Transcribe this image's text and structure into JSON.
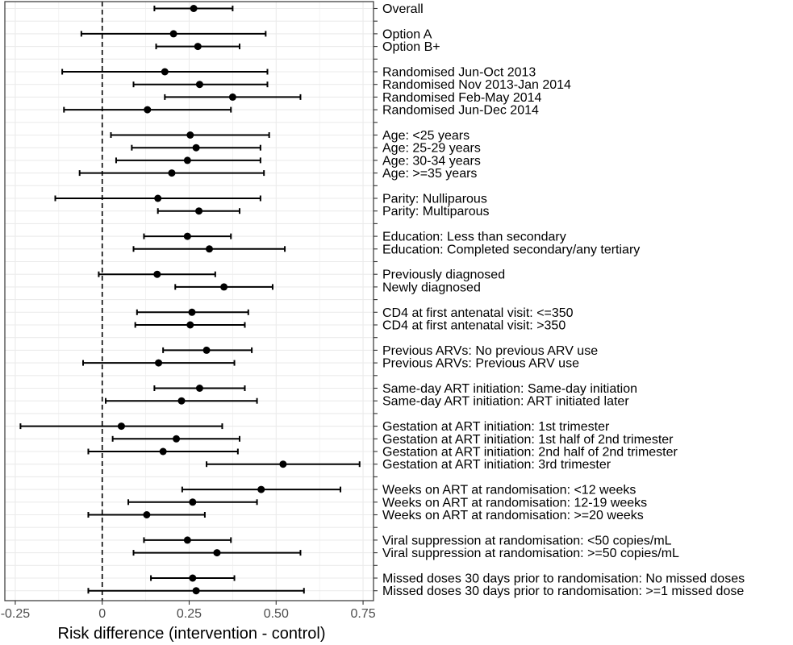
{
  "chart_data": {
    "type": "scatter",
    "subtype": "forest-plot",
    "title": "",
    "xlabel": "Risk difference (intervention - control)",
    "ylabel": "",
    "xlim": [
      -0.28,
      0.78
    ],
    "xticks": [
      -0.25,
      0,
      0.25,
      0.5,
      0.75
    ],
    "xtick_labels": [
      "-0.25",
      "0",
      "0.25",
      "0.50",
      "0.75"
    ],
    "reference_line": 0,
    "grid": true,
    "legend": "none",
    "rows": [
      {
        "label": "Overall",
        "estimate": 0.263,
        "lower": 0.15,
        "upper": 0.375
      },
      {
        "label": "",
        "estimate": null,
        "lower": null,
        "upper": null
      },
      {
        "label": "Option A",
        "estimate": 0.205,
        "lower": -0.06,
        "upper": 0.47
      },
      {
        "label": "Option B+",
        "estimate": 0.275,
        "lower": 0.155,
        "upper": 0.395
      },
      {
        "label": "",
        "estimate": null,
        "lower": null,
        "upper": null
      },
      {
        "label": "Randomised Jun-Oct 2013",
        "estimate": 0.18,
        "lower": -0.115,
        "upper": 0.475
      },
      {
        "label": "Randomised Nov 2013-Jan 2014",
        "estimate": 0.28,
        "lower": 0.09,
        "upper": 0.475
      },
      {
        "label": "Randomised Feb-May 2014",
        "estimate": 0.375,
        "lower": 0.18,
        "upper": 0.57
      },
      {
        "label": "Randomised Jun-Dec 2014",
        "estimate": 0.13,
        "lower": -0.11,
        "upper": 0.37
      },
      {
        "label": "",
        "estimate": null,
        "lower": null,
        "upper": null
      },
      {
        "label": "Age: <25 years",
        "estimate": 0.253,
        "lower": 0.025,
        "upper": 0.48
      },
      {
        "label": "Age: 25-29 years",
        "estimate": 0.27,
        "lower": 0.085,
        "upper": 0.455
      },
      {
        "label": "Age: 30-34 years",
        "estimate": 0.245,
        "lower": 0.04,
        "upper": 0.455
      },
      {
        "label": "Age: >=35 years",
        "estimate": 0.2,
        "lower": -0.065,
        "upper": 0.465
      },
      {
        "label": "",
        "estimate": null,
        "lower": null,
        "upper": null
      },
      {
        "label": "Parity: Nulliparous",
        "estimate": 0.16,
        "lower": -0.135,
        "upper": 0.455
      },
      {
        "label": "Parity: Multiparous",
        "estimate": 0.278,
        "lower": 0.16,
        "upper": 0.395
      },
      {
        "label": "",
        "estimate": null,
        "lower": null,
        "upper": null
      },
      {
        "label": "Education: Less than secondary",
        "estimate": 0.245,
        "lower": 0.12,
        "upper": 0.37
      },
      {
        "label": "Education: Completed secondary/any tertiary",
        "estimate": 0.308,
        "lower": 0.09,
        "upper": 0.525
      },
      {
        "label": "",
        "estimate": null,
        "lower": null,
        "upper": null
      },
      {
        "label": "Previously diagnosed",
        "estimate": 0.158,
        "lower": -0.01,
        "upper": 0.325
      },
      {
        "label": "Newly diagnosed",
        "estimate": 0.35,
        "lower": 0.21,
        "upper": 0.49
      },
      {
        "label": "",
        "estimate": null,
        "lower": null,
        "upper": null
      },
      {
        "label": "CD4 at first antenatal visit: <=350",
        "estimate": 0.258,
        "lower": 0.1,
        "upper": 0.42
      },
      {
        "label": "CD4 at first antenatal visit: >350",
        "estimate": 0.253,
        "lower": 0.095,
        "upper": 0.41
      },
      {
        "label": "",
        "estimate": null,
        "lower": null,
        "upper": null
      },
      {
        "label": "Previous ARVs: No previous ARV use",
        "estimate": 0.3,
        "lower": 0.175,
        "upper": 0.43
      },
      {
        "label": "Previous ARVs: Previous ARV use",
        "estimate": 0.162,
        "lower": -0.055,
        "upper": 0.38
      },
      {
        "label": "",
        "estimate": null,
        "lower": null,
        "upper": null
      },
      {
        "label": "Same-day ART initiation: Same-day initiation",
        "estimate": 0.28,
        "lower": 0.15,
        "upper": 0.41
      },
      {
        "label": "Same-day ART initiation: ART initiated later",
        "estimate": 0.228,
        "lower": 0.01,
        "upper": 0.445
      },
      {
        "label": "",
        "estimate": null,
        "lower": null,
        "upper": null
      },
      {
        "label": "Gestation at ART initiation: 1st trimester",
        "estimate": 0.055,
        "lower": -0.235,
        "upper": 0.345
      },
      {
        "label": "Gestation at ART initiation: 1st half of 2nd trimester",
        "estimate": 0.213,
        "lower": 0.03,
        "upper": 0.395
      },
      {
        "label": "Gestation at ART initiation: 2nd half of 2nd trimester",
        "estimate": 0.175,
        "lower": -0.04,
        "upper": 0.39
      },
      {
        "label": "Gestation at ART initiation: 3rd trimester",
        "estimate": 0.52,
        "lower": 0.3,
        "upper": 0.74
      },
      {
        "label": "",
        "estimate": null,
        "lower": null,
        "upper": null
      },
      {
        "label": "Weeks on ART at randomisation: <12 weeks",
        "estimate": 0.457,
        "lower": 0.23,
        "upper": 0.685
      },
      {
        "label": "Weeks on ART at randomisation: 12-19 weeks",
        "estimate": 0.26,
        "lower": 0.075,
        "upper": 0.445
      },
      {
        "label": "Weeks on ART at randomisation: >=20 weeks",
        "estimate": 0.128,
        "lower": -0.04,
        "upper": 0.295
      },
      {
        "label": "",
        "estimate": null,
        "lower": null,
        "upper": null
      },
      {
        "label": "Viral suppression at randomisation: <50 copies/mL",
        "estimate": 0.245,
        "lower": 0.12,
        "upper": 0.37
      },
      {
        "label": "Viral suppression at randomisation: >=50 copies/mL",
        "estimate": 0.33,
        "lower": 0.09,
        "upper": 0.57
      },
      {
        "label": "",
        "estimate": null,
        "lower": null,
        "upper": null
      },
      {
        "label": "Missed doses 30 days prior to randomisation: No missed doses",
        "estimate": 0.26,
        "lower": 0.14,
        "upper": 0.38
      },
      {
        "label": "Missed doses 30 days prior to randomisation: >=1 missed dose",
        "estimate": 0.27,
        "lower": -0.04,
        "upper": 0.58
      }
    ],
    "colors": {
      "panel_border": "#333333",
      "grid": "#ebebeb",
      "points": "#000000",
      "reference_line": "#000000"
    }
  }
}
